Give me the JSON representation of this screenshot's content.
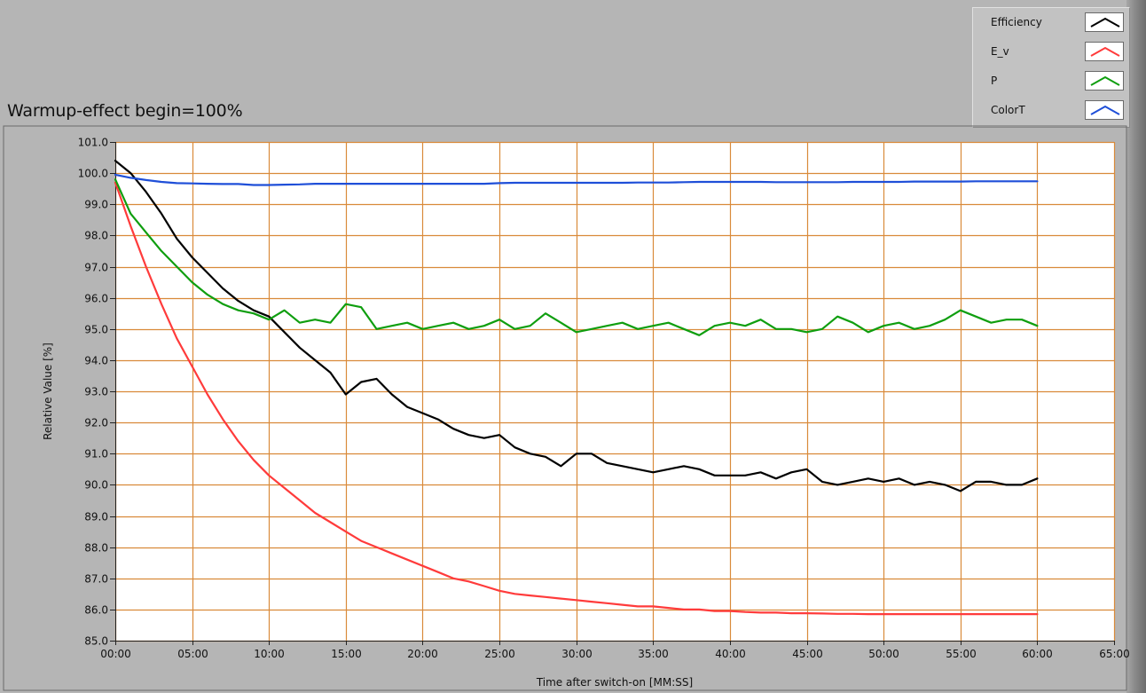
{
  "chart_data": {
    "type": "line",
    "title": "Warmup-effect begin=100%",
    "xlabel": "Time after switch-on [MM:SS]",
    "ylabel": "Relative Value [%]",
    "xlim": [
      0,
      65
    ],
    "ylim": [
      85,
      101
    ],
    "x_ticks": [
      0,
      5,
      10,
      15,
      20,
      25,
      30,
      35,
      40,
      45,
      50,
      55,
      60,
      65
    ],
    "x_tick_labels": [
      "00:00",
      "05:00",
      "10:00",
      "15:00",
      "20:00",
      "25:00",
      "30:00",
      "35:00",
      "40:00",
      "45:00",
      "50:00",
      "55:00",
      "60:00",
      "65:00"
    ],
    "y_ticks": [
      85,
      86,
      87,
      88,
      89,
      90,
      91,
      92,
      93,
      94,
      95,
      96,
      97,
      98,
      99,
      100,
      101
    ],
    "y_tick_labels": [
      "85.0",
      "86.0",
      "87.0",
      "88.0",
      "89.0",
      "90.0",
      "91.0",
      "92.0",
      "93.0",
      "94.0",
      "95.0",
      "96.0",
      "97.0",
      "98.0",
      "99.0",
      "100.0",
      "101.0"
    ],
    "grid": true,
    "legend_position": "top-right",
    "colors": {
      "plot_background": "#ffffff",
      "grid": "#d98a3a",
      "panel": "#b5b5b5"
    },
    "series": [
      {
        "name": "Efficiency",
        "color": "#000000",
        "x": [
          0,
          1,
          2,
          3,
          4,
          5,
          6,
          7,
          8,
          9,
          10,
          11,
          12,
          13,
          14,
          15,
          16,
          17,
          18,
          19,
          20,
          21,
          22,
          23,
          24,
          25,
          26,
          27,
          28,
          29,
          30,
          31,
          32,
          33,
          34,
          35,
          36,
          37,
          38,
          39,
          40,
          41,
          42,
          43,
          44,
          45,
          46,
          47,
          48,
          49,
          50,
          51,
          52,
          53,
          54,
          55,
          56,
          57,
          58,
          59,
          60
        ],
        "values": [
          100.4,
          100.0,
          99.4,
          98.7,
          97.9,
          97.3,
          96.8,
          96.3,
          95.9,
          95.6,
          95.4,
          94.9,
          94.4,
          94.0,
          93.6,
          92.9,
          93.3,
          93.4,
          92.9,
          92.5,
          92.3,
          92.1,
          91.8,
          91.6,
          91.5,
          91.6,
          91.2,
          91.0,
          90.9,
          90.6,
          91.0,
          91.0,
          90.7,
          90.6,
          90.5,
          90.4,
          90.5,
          90.6,
          90.5,
          90.3,
          90.3,
          90.3,
          90.4,
          90.2,
          90.4,
          90.5,
          90.1,
          90.0,
          90.1,
          90.2,
          90.1,
          90.2,
          90.0,
          90.1,
          90.0,
          89.8,
          90.1,
          90.1,
          90.0,
          90.0,
          90.2
        ]
      },
      {
        "name": "E_v",
        "color": "#ff3b3b",
        "x": [
          0,
          1,
          2,
          3,
          4,
          5,
          6,
          7,
          8,
          9,
          10,
          11,
          12,
          13,
          14,
          15,
          16,
          17,
          18,
          19,
          20,
          21,
          22,
          23,
          24,
          25,
          26,
          27,
          28,
          29,
          30,
          31,
          32,
          33,
          34,
          35,
          36,
          37,
          38,
          39,
          40,
          41,
          42,
          43,
          44,
          45,
          46,
          47,
          48,
          49,
          50,
          51,
          52,
          53,
          54,
          55,
          56,
          57,
          58,
          59,
          60
        ],
        "values": [
          99.7,
          98.3,
          97.0,
          95.8,
          94.7,
          93.8,
          92.9,
          92.1,
          91.4,
          90.8,
          90.3,
          89.9,
          89.5,
          89.1,
          88.8,
          88.5,
          88.2,
          88.0,
          87.8,
          87.6,
          87.4,
          87.2,
          87.0,
          86.9,
          86.75,
          86.6,
          86.5,
          86.45,
          86.4,
          86.35,
          86.3,
          86.25,
          86.2,
          86.15,
          86.1,
          86.1,
          86.05,
          86.0,
          86.0,
          85.95,
          85.95,
          85.92,
          85.9,
          85.9,
          85.88,
          85.88,
          85.87,
          85.86,
          85.86,
          85.85,
          85.85,
          85.85,
          85.85,
          85.85,
          85.85,
          85.85,
          85.85,
          85.85,
          85.85,
          85.85,
          85.85
        ]
      },
      {
        "name": "P",
        "color": "#0f9e0f",
        "x": [
          0,
          1,
          2,
          3,
          4,
          5,
          6,
          7,
          8,
          9,
          10,
          11,
          12,
          13,
          14,
          15,
          16,
          17,
          18,
          19,
          20,
          21,
          22,
          23,
          24,
          25,
          26,
          27,
          28,
          29,
          30,
          31,
          32,
          33,
          34,
          35,
          36,
          37,
          38,
          39,
          40,
          41,
          42,
          43,
          44,
          45,
          46,
          47,
          48,
          49,
          50,
          51,
          52,
          53,
          54,
          55,
          56,
          57,
          58,
          59,
          60
        ],
        "values": [
          99.8,
          98.7,
          98.1,
          97.5,
          97.0,
          96.5,
          96.1,
          95.8,
          95.6,
          95.5,
          95.3,
          95.6,
          95.2,
          95.3,
          95.2,
          95.8,
          95.7,
          95.0,
          95.1,
          95.2,
          95.0,
          95.1,
          95.2,
          95.0,
          95.1,
          95.3,
          95.0,
          95.1,
          95.5,
          95.2,
          94.9,
          95.0,
          95.1,
          95.2,
          95.0,
          95.1,
          95.2,
          95.0,
          94.8,
          95.1,
          95.2,
          95.1,
          95.3,
          95.0,
          95.0,
          94.9,
          95.0,
          95.4,
          95.2,
          94.9,
          95.1,
          95.2,
          95.0,
          95.1,
          95.3,
          95.6,
          95.4,
          95.2,
          95.3,
          95.3,
          95.1
        ]
      },
      {
        "name": "ColorT",
        "color": "#1f4fd8",
        "x": [
          0,
          1,
          2,
          3,
          4,
          5,
          6,
          7,
          8,
          9,
          10,
          11,
          12,
          13,
          14,
          15,
          16,
          17,
          18,
          19,
          20,
          21,
          22,
          23,
          24,
          25,
          26,
          27,
          28,
          29,
          30,
          31,
          32,
          33,
          34,
          35,
          36,
          37,
          38,
          39,
          40,
          41,
          42,
          43,
          44,
          45,
          46,
          47,
          48,
          49,
          50,
          51,
          52,
          53,
          54,
          55,
          56,
          57,
          58,
          59,
          60
        ],
        "values": [
          99.95,
          99.85,
          99.78,
          99.72,
          99.68,
          99.67,
          99.66,
          99.65,
          99.65,
          99.62,
          99.62,
          99.63,
          99.64,
          99.66,
          99.66,
          99.66,
          99.66,
          99.66,
          99.66,
          99.66,
          99.66,
          99.66,
          99.66,
          99.66,
          99.66,
          99.68,
          99.69,
          99.69,
          99.69,
          99.69,
          99.69,
          99.69,
          99.69,
          99.69,
          99.7,
          99.7,
          99.7,
          99.71,
          99.72,
          99.72,
          99.72,
          99.72,
          99.72,
          99.71,
          99.71,
          99.71,
          99.71,
          99.71,
          99.72,
          99.72,
          99.72,
          99.72,
          99.73,
          99.73,
          99.73,
          99.73,
          99.74,
          99.74,
          99.74,
          99.74,
          99.74
        ]
      }
    ]
  }
}
